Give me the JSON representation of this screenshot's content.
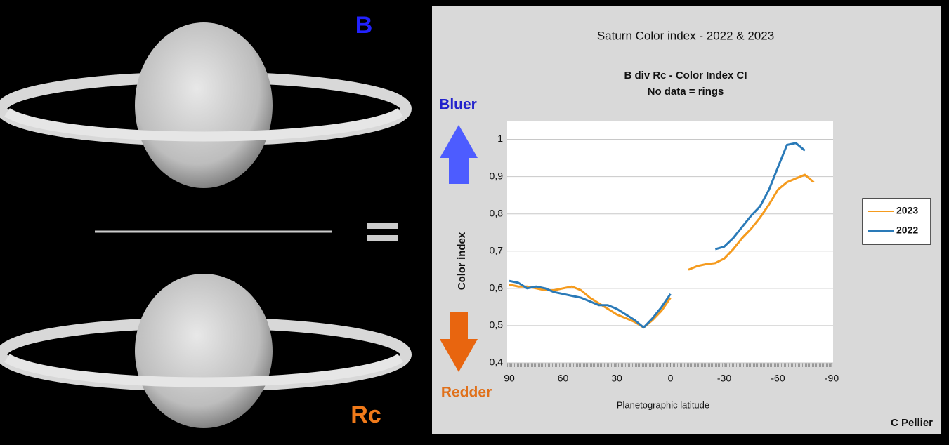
{
  "chart_data": {
    "type": "line",
    "title": "Saturn Color index - 2022 & 2023",
    "subtitle": [
      "B div Rc - Color Index CI",
      "No data = rings"
    ],
    "x_label": "Planetographic latitude",
    "y_label": "Color index",
    "annotations": {
      "bluer": "Bluer",
      "redder": "Redder",
      "credit": "C Pellier",
      "filter_top": "B",
      "filter_bottom": "Rc"
    },
    "x": [
      90,
      85,
      80,
      75,
      70,
      65,
      60,
      55,
      50,
      45,
      40,
      35,
      30,
      25,
      20,
      15,
      10,
      5,
      0,
      -5,
      -10,
      -15,
      -20,
      -25,
      -30,
      -35,
      -40,
      -45,
      -50,
      -55,
      -60,
      -65,
      -70,
      -75,
      -80
    ],
    "series": [
      {
        "name": "2023",
        "color": "#f59b1e",
        "values": [
          0.61,
          0.605,
          0.605,
          0.6,
          0.595,
          0.595,
          0.6,
          0.605,
          0.595,
          0.575,
          0.56,
          0.545,
          0.53,
          0.52,
          0.51,
          0.495,
          0.515,
          0.54,
          0.575,
          null,
          0.65,
          0.66,
          0.665,
          0.668,
          0.68,
          0.705,
          0.735,
          0.76,
          0.79,
          0.825,
          0.865,
          0.885,
          0.895,
          0.905,
          0.885
        ]
      },
      {
        "name": "2022",
        "color": "#2a7ab8",
        "values": [
          0.62,
          0.615,
          0.6,
          0.605,
          0.6,
          0.59,
          0.585,
          0.58,
          0.575,
          0.565,
          0.555,
          0.555,
          0.545,
          0.53,
          0.515,
          0.495,
          0.52,
          0.55,
          0.585,
          null,
          null,
          null,
          null,
          0.705,
          0.712,
          0.735,
          0.765,
          0.795,
          0.82,
          0.865,
          0.925,
          0.985,
          0.99,
          0.97,
          null
        ]
      }
    ],
    "xlim": [
      90,
      -90
    ],
    "xticks": [
      90,
      60,
      30,
      0,
      -30,
      -60,
      -90
    ],
    "ylim": [
      0.4,
      1.05
    ],
    "yticks": [
      {
        "value": 0.4,
        "label": "0,4"
      },
      {
        "value": 0.5,
        "label": "0,5"
      },
      {
        "value": 0.6,
        "label": "0,6"
      },
      {
        "value": 0.7,
        "label": "0,7"
      },
      {
        "value": 0.8,
        "label": "0,8"
      },
      {
        "value": 0.9,
        "label": "0,9"
      },
      1
    ],
    "grid": true,
    "legend": "right"
  }
}
